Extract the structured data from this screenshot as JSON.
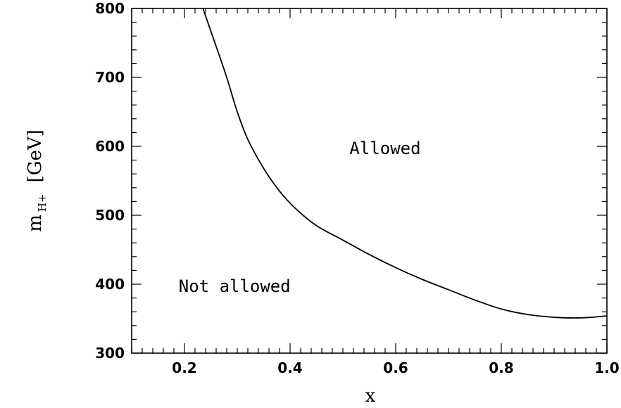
{
  "chart_data": {
    "type": "line",
    "title": "",
    "xlabel": "x",
    "ylabel": {
      "base": "m",
      "subscript": "H+",
      "unit": "[GeV]"
    },
    "xlim": [
      0.1,
      1.0
    ],
    "ylim": [
      300,
      800
    ],
    "x_ticks": [
      0.2,
      0.4,
      0.6,
      0.8,
      1.0
    ],
    "x_tick_labels": [
      "0.2",
      "0.4",
      "0.6",
      "0.8",
      "1.0"
    ],
    "y_ticks": [
      300,
      400,
      500,
      600,
      700,
      800
    ],
    "y_tick_labels": [
      "300",
      "400",
      "500",
      "600",
      "700",
      "800"
    ],
    "grid": false,
    "series": [
      {
        "x": [
          0.235,
          0.26,
          0.28,
          0.3,
          0.32,
          0.35,
          0.38,
          0.41,
          0.45,
          0.5,
          0.55,
          0.6,
          0.65,
          0.7,
          0.75,
          0.8,
          0.85,
          0.9,
          0.94,
          0.97,
          1.0
        ],
        "y": [
          800,
          745,
          700,
          650,
          610,
          568,
          535,
          510,
          485,
          464,
          443,
          424,
          407,
          392,
          377,
          364,
          356,
          352,
          351,
          352,
          354
        ]
      }
    ],
    "annotations": [
      {
        "text": "Allowed",
        "x": 0.58,
        "y": 597
      },
      {
        "text": "Not allowed",
        "x": 0.295,
        "y": 397
      }
    ]
  },
  "colors": {
    "line": "#000000",
    "background": "#ffffff"
  }
}
